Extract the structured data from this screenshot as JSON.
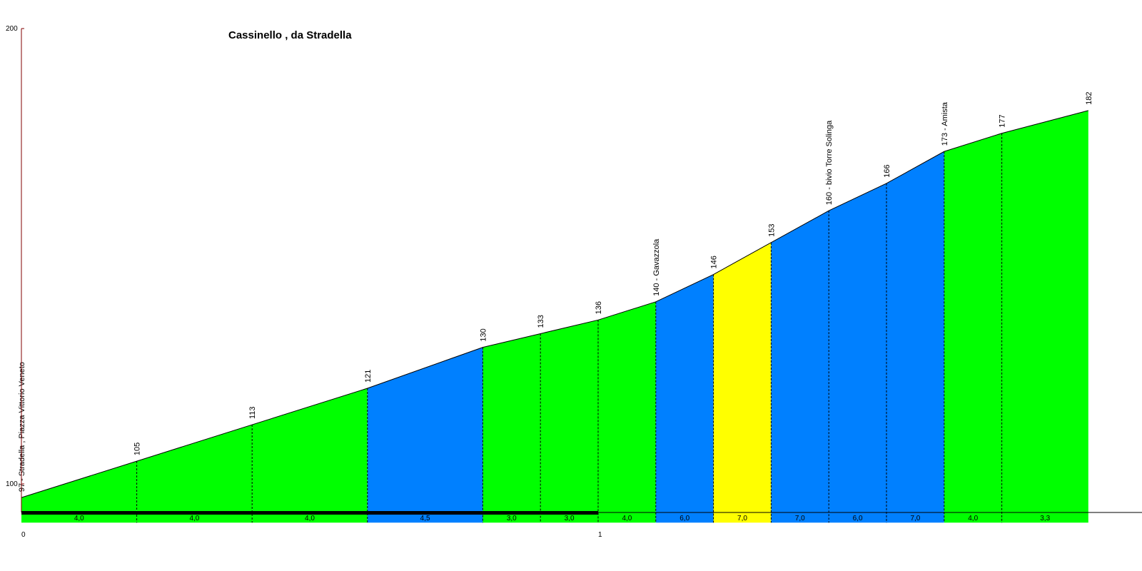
{
  "chart_data": {
    "type": "area",
    "title": "Cassinello , da Stradella",
    "ylim": [
      100,
      200
    ],
    "y_ticks": [
      "200",
      "100"
    ],
    "x_ticks": [
      "0",
      "1"
    ],
    "xlim_km": [
      0,
      1.85
    ],
    "baseline": 91.5,
    "colors": {
      "green": "#00ff00",
      "blue": "#0080ff",
      "yellow": "#ffff00",
      "axis": "#800000"
    },
    "points": [
      {
        "x": 0.0,
        "alt": 97,
        "label": "97 - Stradella , Piazza Vittorio Veneto"
      },
      {
        "x": 0.2,
        "alt": 105,
        "label": "105"
      },
      {
        "x": 0.4,
        "alt": 113,
        "label": "113"
      },
      {
        "x": 0.6,
        "alt": 121,
        "label": "121"
      },
      {
        "x": 0.8,
        "alt": 130,
        "label": "130"
      },
      {
        "x": 0.9,
        "alt": 133,
        "label": "133"
      },
      {
        "x": 1.0,
        "alt": 136,
        "label": "136"
      },
      {
        "x": 1.1,
        "alt": 140,
        "label": "140 - Gavazzola"
      },
      {
        "x": 1.2,
        "alt": 146,
        "label": "146"
      },
      {
        "x": 1.3,
        "alt": 153,
        "label": "153"
      },
      {
        "x": 1.4,
        "alt": 160,
        "label": "160 - bivio Torre Solinga"
      },
      {
        "x": 1.5,
        "alt": 166,
        "label": "166"
      },
      {
        "x": 1.6,
        "alt": 173,
        "label": "173 - Amista"
      },
      {
        "x": 1.7,
        "alt": 177,
        "label": "177"
      },
      {
        "x": 1.85,
        "alt": 182,
        "label": "182"
      }
    ],
    "segments": [
      {
        "gradient": "4,0",
        "color": "green"
      },
      {
        "gradient": "4,0",
        "color": "green"
      },
      {
        "gradient": "4,0",
        "color": "green"
      },
      {
        "gradient": "4,5",
        "color": "blue"
      },
      {
        "gradient": "3,0",
        "color": "green"
      },
      {
        "gradient": "3,0",
        "color": "green"
      },
      {
        "gradient": "4,0",
        "color": "green"
      },
      {
        "gradient": "6,0",
        "color": "blue"
      },
      {
        "gradient": "7,0",
        "color": "yellow"
      },
      {
        "gradient": "7,0",
        "color": "blue"
      },
      {
        "gradient": "6,0",
        "color": "blue"
      },
      {
        "gradient": "7,0",
        "color": "blue"
      },
      {
        "gradient": "4,0",
        "color": "green"
      },
      {
        "gradient": "3,3",
        "color": "green"
      }
    ]
  }
}
